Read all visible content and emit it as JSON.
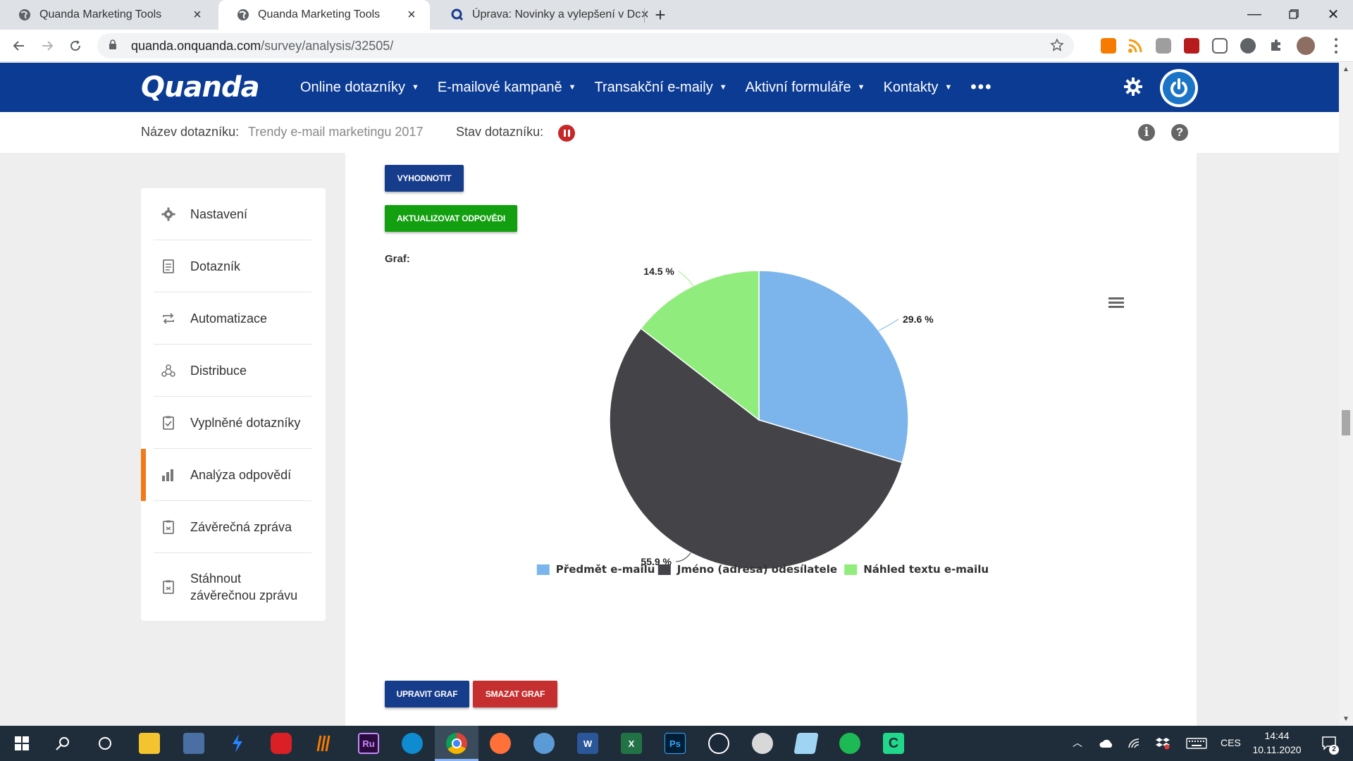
{
  "browser": {
    "tabs": [
      {
        "title": "Quanda Marketing Tools",
        "active": false
      },
      {
        "title": "Quanda Marketing Tools",
        "active": true
      },
      {
        "title": "Úprava: Novinky a vylepšení v Dc",
        "active": false
      }
    ],
    "url_host": "quanda.onquanda.com",
    "url_path": "/survey/analysis/32505/"
  },
  "app": {
    "logo": "Quanda",
    "menu": [
      {
        "label": "Online dotazníky"
      },
      {
        "label": "E-mailové kampaně"
      },
      {
        "label": "Transakční e-maily"
      },
      {
        "label": "Aktivní formuláře"
      },
      {
        "label": "Kontakty"
      }
    ],
    "more": "•••"
  },
  "subheader": {
    "name_label": "Název dotazníku:",
    "name_value": "Trendy e-mail marketingu 2017",
    "status_label": "Stav dotazníku:"
  },
  "sidebar": {
    "items": [
      {
        "label": "Nastavení",
        "icon": "gear-icon"
      },
      {
        "label": "Dotazník",
        "icon": "document-icon"
      },
      {
        "label": "Automatizace",
        "icon": "repeat-icon"
      },
      {
        "label": "Distribuce",
        "icon": "distribution-icon"
      },
      {
        "label": "Vyplněné dotazníky",
        "icon": "checklist-icon"
      },
      {
        "label": "Analýza odpovědí",
        "icon": "bar-chart-icon",
        "active": true
      },
      {
        "label": "Závěrečná zpráva",
        "icon": "report-icon"
      },
      {
        "label": "Stáhnout závěrečnou zprávu",
        "icon": "report-download-icon"
      }
    ]
  },
  "panel": {
    "evaluate_button": "VYHODNOTIT",
    "update_button": "AKTUALIZOVAT ODPOVĚDI",
    "graph_label": "Graf:",
    "edit_button": "UPRAVIT GRAF",
    "delete_button": "SMAZAT GRAF"
  },
  "chart_data": {
    "type": "pie",
    "title": "",
    "legend_position": "bottom",
    "slices": [
      {
        "name": "Předmět e-mailu",
        "value": 29.6,
        "label": "29.6 %",
        "color": "#7cb5ec"
      },
      {
        "name": "Jméno (adresa) odesílatele",
        "value": 55.9,
        "label": "55.9 %",
        "color": "#434348"
      },
      {
        "name": "Náhled textu e-mailu",
        "value": 14.5,
        "label": "14.5 %",
        "color": "#90ed7d"
      }
    ]
  },
  "taskbar": {
    "language": "CES",
    "time": "14:44",
    "date": "10.11.2020",
    "notifications": "2"
  },
  "colors": {
    "brand": "#0c3b94",
    "accent_active": "#f07a1a",
    "green": "#13a010",
    "red": "#c62f2f"
  }
}
